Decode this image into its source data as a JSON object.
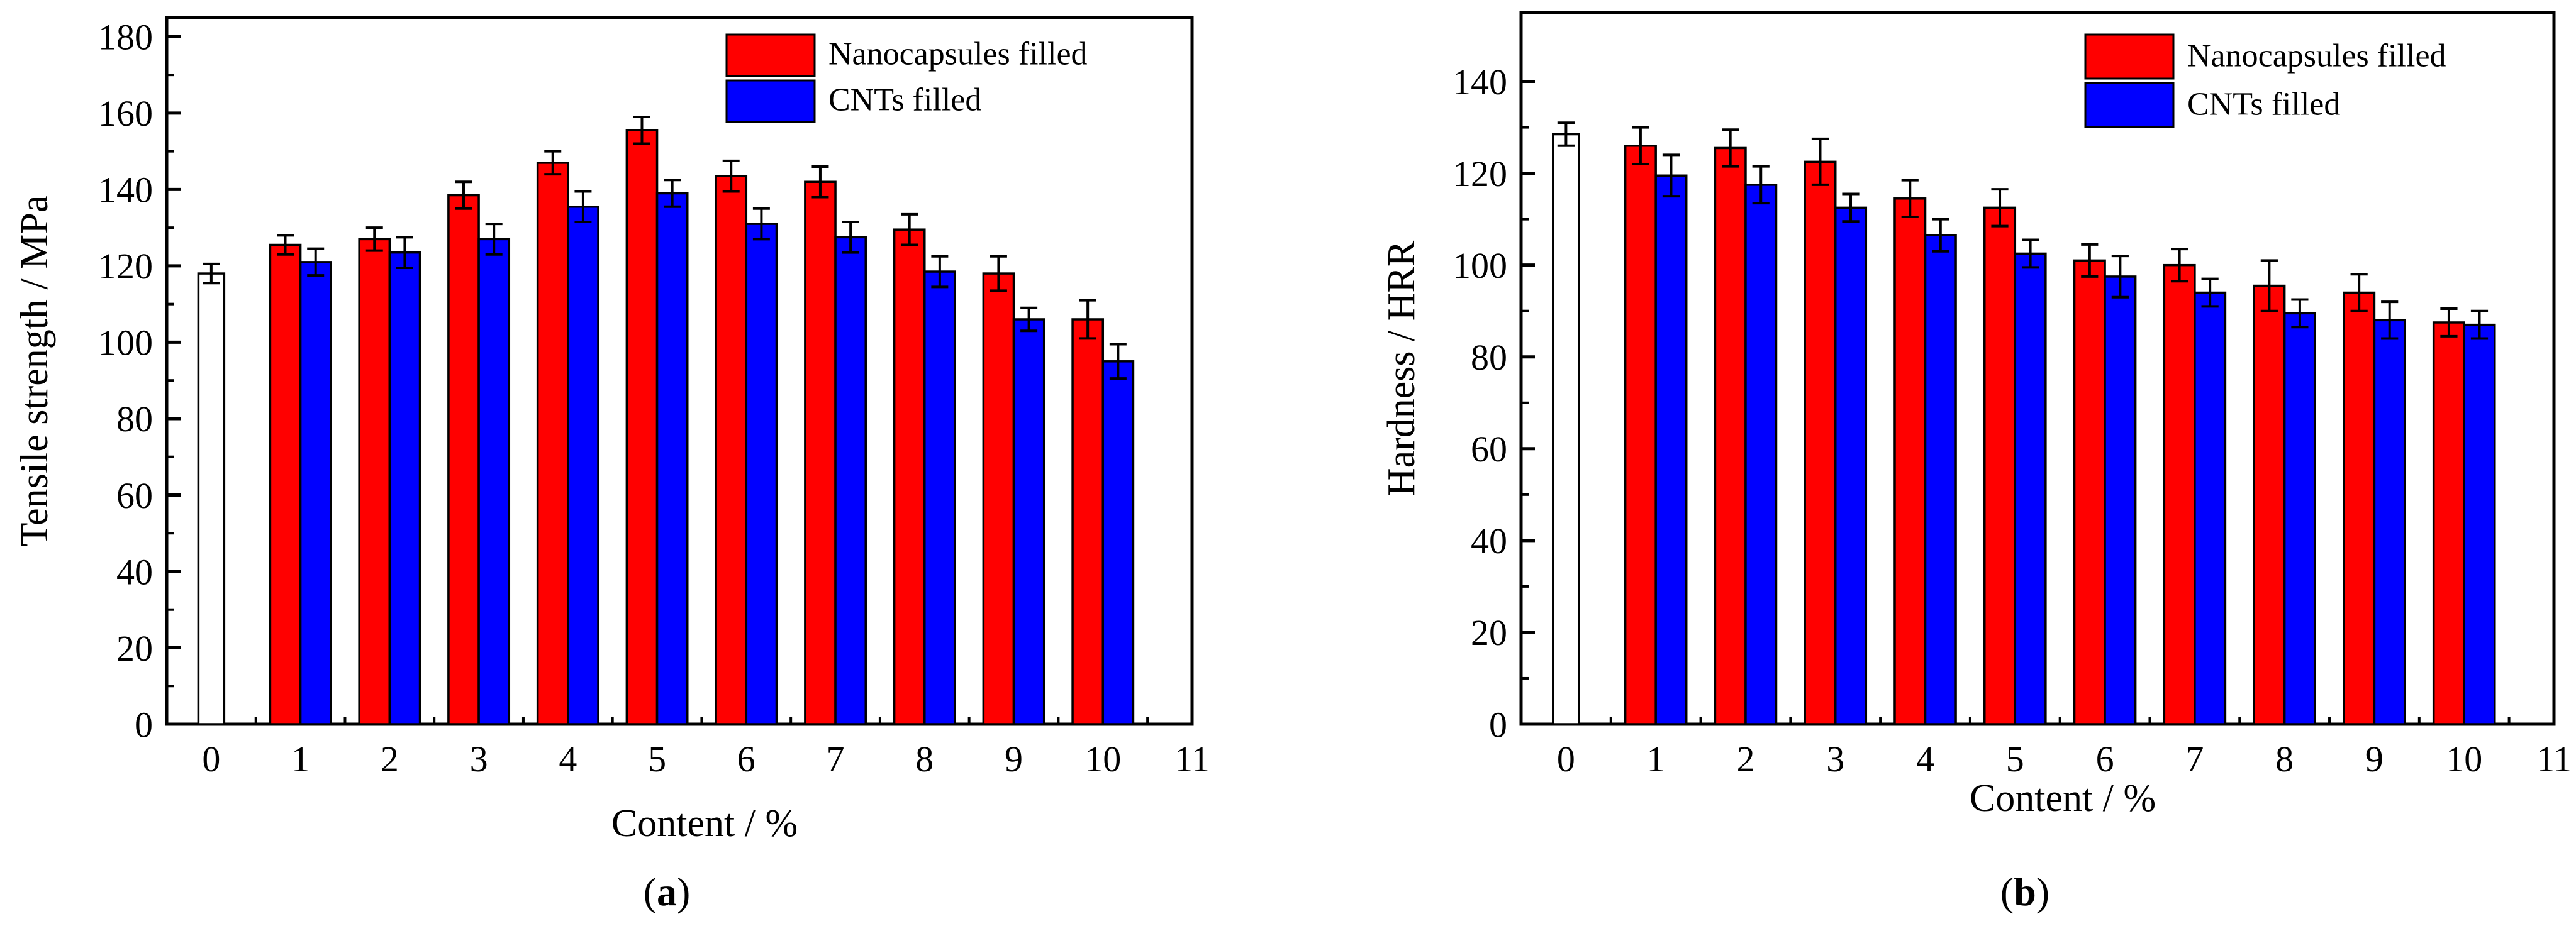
{
  "colors": {
    "nanocapsules": "#ff0000",
    "cnts": "#0000ff",
    "baseline": "#ffffff",
    "axis": "#000000",
    "bar_edge": "#000000"
  },
  "chart_data": [
    {
      "type": "bar",
      "panel_label": "a",
      "title": "",
      "xlabel": "Content / %",
      "ylabel": "Tensile strength / MPa",
      "xlim": [
        -0.5,
        11
      ],
      "ylim": [
        0,
        185
      ],
      "x_ticks": [
        0,
        1,
        2,
        3,
        4,
        5,
        6,
        7,
        8,
        9,
        10,
        11
      ],
      "x_tick_labels": [
        "0",
        "1",
        "2",
        "3",
        "4",
        "5",
        "6",
        "7",
        "8",
        "9",
        "10",
        "11"
      ],
      "y_ticks": [
        0,
        20,
        40,
        60,
        80,
        100,
        120,
        140,
        160,
        180
      ],
      "y_tick_labels": [
        "0",
        "20",
        "40",
        "60",
        "80",
        "100",
        "120",
        "140",
        "160",
        "180"
      ],
      "baseline": {
        "x": 0,
        "value": 118,
        "error": 2.5
      },
      "categories": [
        "1",
        "2",
        "3",
        "4",
        "5",
        "6",
        "7",
        "8",
        "9",
        "10"
      ],
      "series": [
        {
          "name": "Nanocapsules filled",
          "color_key": "nanocapsules",
          "values": [
            125.5,
            127,
            138.5,
            147,
            155.5,
            143.5,
            142,
            129.5,
            118,
            106
          ],
          "errors": [
            2.5,
            3,
            3.5,
            3,
            3.5,
            4,
            4,
            4,
            4.5,
            5
          ]
        },
        {
          "name": "CNTs filled",
          "color_key": "cnts",
          "values": [
            121,
            123.5,
            127,
            135.5,
            139,
            131,
            127.5,
            118.5,
            106,
            95
          ],
          "errors": [
            3.5,
            4,
            4,
            4,
            3.5,
            4,
            4,
            4,
            3,
            4.5
          ]
        }
      ],
      "legend": {
        "placement": "top-right",
        "entries": [
          "Nanocapsules filled",
          "CNTs filled"
        ]
      }
    },
    {
      "type": "bar",
      "panel_label": "b",
      "title": "",
      "xlabel": "Content / %",
      "ylabel": "Hardness / HRR",
      "xlim": [
        -0.5,
        11
      ],
      "ylim": [
        0,
        155
      ],
      "x_ticks": [
        0,
        1,
        2,
        3,
        4,
        5,
        6,
        7,
        8,
        9,
        10,
        11
      ],
      "x_tick_labels": [
        "0",
        "1",
        "2",
        "3",
        "4",
        "5",
        "6",
        "7",
        "8",
        "9",
        "10",
        "11"
      ],
      "y_ticks": [
        0,
        20,
        40,
        60,
        80,
        100,
        120,
        140
      ],
      "y_tick_labels": [
        "0",
        "20",
        "40",
        "60",
        "80",
        "100",
        "120",
        "140"
      ],
      "baseline": {
        "x": 0,
        "value": 128.5,
        "error": 2.5
      },
      "categories": [
        "1",
        "2",
        "3",
        "4",
        "5",
        "6",
        "7",
        "8",
        "9",
        "10"
      ],
      "series": [
        {
          "name": "Nanocapsules filled",
          "color_key": "nanocapsules",
          "values": [
            126,
            125.5,
            122.5,
            114.5,
            112.5,
            101,
            100,
            95.5,
            94,
            87.5
          ],
          "errors": [
            4,
            4,
            5,
            4,
            4,
            3.5,
            3.5,
            5.5,
            4,
            3
          ]
        },
        {
          "name": "CNTs filled",
          "color_key": "cnts",
          "values": [
            119.5,
            117.5,
            112.5,
            106.5,
            102.5,
            97.5,
            94,
            89.5,
            88,
            87
          ],
          "errors": [
            4.5,
            4,
            3,
            3.5,
            3,
            4.5,
            3,
            3,
            4,
            3
          ]
        }
      ],
      "legend": {
        "placement": "top-right",
        "entries": [
          "Nanocapsules filled",
          "CNTs filled"
        ]
      }
    }
  ]
}
